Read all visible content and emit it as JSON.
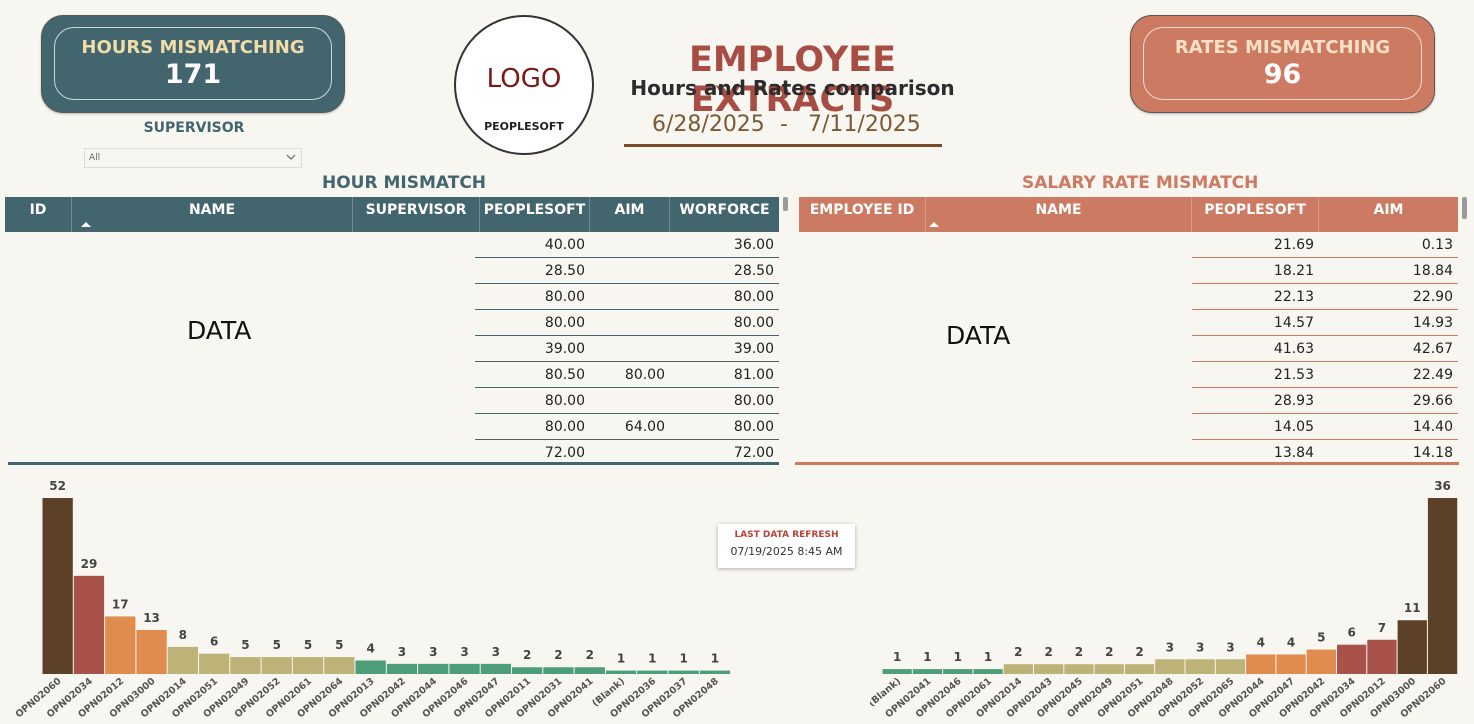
{
  "kpis": {
    "hours": {
      "title": "HOURS MISMATCHING",
      "value": "171"
    },
    "rates": {
      "title": "RATES MISMATCHING",
      "value": "96"
    }
  },
  "slicer": {
    "label": "SUPERVISOR",
    "value": "All",
    "icon": "chevron-down-icon"
  },
  "logo": {
    "main": "LOGO",
    "sub": "PEOPLESOFT"
  },
  "header": {
    "title": "EMPLOYEE EXTRACTS",
    "subtitle": "Hours and Rates comparison",
    "date_from": "6/28/2025",
    "date_sep": "-",
    "date_to": "7/11/2025"
  },
  "hour_table": {
    "title": "HOUR MISMATCH",
    "columns": [
      "ID",
      "NAME",
      "SUPERVISOR",
      "PEOPLESOFT",
      "AIM",
      "WORFORCE"
    ],
    "placeholder": "DATA",
    "rows": [
      [
        "40.00",
        "",
        "36.00"
      ],
      [
        "28.50",
        "",
        "28.50"
      ],
      [
        "80.00",
        "",
        "80.00"
      ],
      [
        "80.00",
        "",
        "80.00"
      ],
      [
        "39.00",
        "",
        "39.00"
      ],
      [
        "80.50",
        "80.00",
        "81.00"
      ],
      [
        "80.00",
        "",
        "80.00"
      ],
      [
        "80.00",
        "64.00",
        "80.00"
      ],
      [
        "72.00",
        "",
        "72.00"
      ]
    ]
  },
  "rate_table": {
    "title": "SALARY RATE MISMATCH",
    "columns": [
      "EMPLOYEE ID",
      "NAME",
      "PEOPLESOFT",
      "AIM"
    ],
    "placeholder": "DATA",
    "rows": [
      [
        "21.69",
        "0.13"
      ],
      [
        "18.21",
        "18.84"
      ],
      [
        "22.13",
        "22.90"
      ],
      [
        "14.57",
        "14.93"
      ],
      [
        "41.63",
        "42.67"
      ],
      [
        "21.53",
        "22.49"
      ],
      [
        "28.93",
        "29.66"
      ],
      [
        "14.05",
        "14.40"
      ],
      [
        "13.84",
        "14.18"
      ]
    ]
  },
  "refresh": {
    "label": "LAST DATA REFRESH",
    "value": "07/19/2025 8:45 AM"
  },
  "chart_data": [
    {
      "type": "bar",
      "categories": [
        "OPN02060",
        "OPN02034",
        "OPN02012",
        "OPN03000",
        "OPN02014",
        "OPN02051",
        "OPN02049",
        "OPN02052",
        "OPN02061",
        "OPN02064",
        "OPN02013",
        "OPN02042",
        "OPN02044",
        "OPN02046",
        "OPN02047",
        "OPN02011",
        "OPN02031",
        "OPN02041",
        "(Blank)",
        "OPN02036",
        "OPN02037",
        "OPN02048"
      ],
      "values": [
        52,
        29,
        17,
        13,
        8,
        6,
        5,
        5,
        5,
        5,
        4,
        3,
        3,
        3,
        3,
        2,
        2,
        2,
        1,
        1,
        1,
        1
      ],
      "colors": [
        "#5c4128",
        "#a8524a",
        "#e08c4e",
        "#e08c4e",
        "#bdb277",
        "#bdb277",
        "#bdb277",
        "#bdb277",
        "#bdb277",
        "#bdb277",
        "#4e9e7a",
        "#4e9e7a",
        "#4e9e7a",
        "#4e9e7a",
        "#4e9e7a",
        "#4e9e7a",
        "#4e9e7a",
        "#4e9e7a",
        "#4e9e7a",
        "#4e9e7a",
        "#4e9e7a",
        "#4e9e7a"
      ],
      "ylim": [
        0,
        52
      ]
    },
    {
      "type": "bar",
      "categories": [
        "(Blank)",
        "OPN02041",
        "OPN02046",
        "OPN02061",
        "OPN02014",
        "OPN02043",
        "OPN02045",
        "OPN02049",
        "OPN02051",
        "OPN02048",
        "OPN02052",
        "OPN02065",
        "OPN02044",
        "OPN02047",
        "OPN02042",
        "OPN02034",
        "OPN02012",
        "OPN03000",
        "OPN02060"
      ],
      "values": [
        1,
        1,
        1,
        1,
        2,
        2,
        2,
        2,
        2,
        3,
        3,
        3,
        4,
        4,
        5,
        6,
        7,
        11,
        36
      ],
      "colors": [
        "#4e9e7a",
        "#4e9e7a",
        "#4e9e7a",
        "#4e9e7a",
        "#bdb277",
        "#bdb277",
        "#bdb277",
        "#bdb277",
        "#bdb277",
        "#bdb277",
        "#bdb277",
        "#bdb277",
        "#e08c4e",
        "#e08c4e",
        "#e08c4e",
        "#a8524a",
        "#a8524a",
        "#5c4128",
        "#5c4128"
      ],
      "ylim": [
        0,
        36
      ]
    }
  ]
}
